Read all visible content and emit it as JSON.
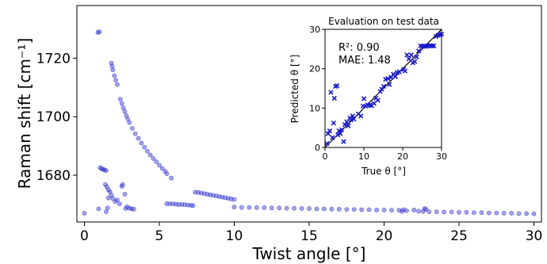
{
  "chart_data": [
    {
      "type": "scatter",
      "title": "",
      "xlabel": "Twist angle [°]",
      "ylabel": "Raman shift [cm⁻¹]",
      "xlim": [
        -0.5,
        30.5
      ],
      "ylim": [
        1664,
        1738
      ],
      "xticks": [
        0,
        5,
        10,
        15,
        20,
        25,
        30
      ],
      "xtick_labels": [
        "0",
        "5",
        "10",
        "15",
        "20",
        "25",
        "30"
      ],
      "yticks": [
        1680,
        1700,
        1720
      ],
      "ytick_labels": [
        "1680",
        "1700",
        "1720"
      ],
      "grid": false,
      "marker_color": "#3333cc",
      "series": [
        {
          "name": "",
          "points": [
            [
              0.0,
              1667.0
            ],
            [
              0.9,
              1728.8
            ],
            [
              1.0,
              1729.0
            ],
            [
              0.95,
              1668.5
            ],
            [
              1.05,
              1682.6
            ],
            [
              1.15,
              1682.2
            ],
            [
              1.25,
              1682.0
            ],
            [
              1.35,
              1681.8
            ],
            [
              1.45,
              1681.6
            ],
            [
              1.4,
              1676.8
            ],
            [
              1.5,
              1676.0
            ],
            [
              1.6,
              1675.0
            ],
            [
              1.7,
              1674.3
            ],
            [
              1.8,
              1673.2
            ],
            [
              1.9,
              1672.0
            ],
            [
              1.45,
              1667.5
            ],
            [
              1.55,
              1668.8
            ],
            [
              1.6,
              1672.2
            ],
            [
              1.8,
              1718.3
            ],
            [
              1.85,
              1717.2
            ],
            [
              1.9,
              1716.0
            ],
            [
              2.0,
              1714.0
            ],
            [
              2.1,
              1712.5
            ],
            [
              2.2,
              1711.0
            ],
            [
              2.05,
              1671.0
            ],
            [
              2.2,
              1671.5
            ],
            [
              2.35,
              1670.2
            ],
            [
              2.5,
              1676.2
            ],
            [
              2.55,
              1676.8
            ],
            [
              2.7,
              1673.5
            ],
            [
              2.75,
              1668.6
            ],
            [
              2.85,
              1669.2
            ],
            [
              3.0,
              1668.7
            ],
            [
              3.15,
              1668.5
            ],
            [
              3.3,
              1668.4
            ],
            [
              2.4,
              1706.0
            ],
            [
              2.5,
              1704.5
            ],
            [
              2.6,
              1703.0
            ],
            [
              2.7,
              1701.7
            ],
            [
              2.8,
              1700.3
            ],
            [
              2.9,
              1699.2
            ],
            [
              3.0,
              1698.0
            ],
            [
              3.2,
              1696.0
            ],
            [
              3.4,
              1694.2
            ],
            [
              3.6,
              1692.6
            ],
            [
              3.8,
              1691.0
            ],
            [
              4.0,
              1689.6
            ],
            [
              4.2,
              1688.2
            ],
            [
              4.4,
              1686.9
            ],
            [
              4.6,
              1685.7
            ],
            [
              4.8,
              1684.6
            ],
            [
              5.0,
              1683.4
            ],
            [
              5.2,
              1682.3
            ],
            [
              5.4,
              1681.3
            ],
            [
              5.5,
              1680.5
            ],
            [
              5.8,
              1679.0
            ],
            [
              5.5,
              1670.3
            ],
            [
              5.7,
              1670.2
            ],
            [
              5.9,
              1670.2
            ],
            [
              6.1,
              1670.1
            ],
            [
              6.3,
              1670.0
            ],
            [
              6.5,
              1670.0
            ],
            [
              6.7,
              1669.9
            ],
            [
              6.9,
              1669.8
            ],
            [
              7.1,
              1669.7
            ],
            [
              7.25,
              1669.6
            ],
            [
              7.4,
              1674.2
            ],
            [
              7.6,
              1674.1
            ],
            [
              7.8,
              1673.9
            ],
            [
              8.0,
              1673.7
            ],
            [
              8.2,
              1673.5
            ],
            [
              8.4,
              1673.3
            ],
            [
              8.6,
              1673.1
            ],
            [
              8.8,
              1672.9
            ],
            [
              9.0,
              1672.7
            ],
            [
              9.2,
              1672.5
            ],
            [
              9.4,
              1672.3
            ],
            [
              9.6,
              1672.1
            ],
            [
              9.8,
              1671.9
            ],
            [
              10.0,
              1671.7
            ],
            [
              10.0,
              1669.1
            ],
            [
              10.5,
              1669.0
            ],
            [
              11.0,
              1669.0
            ],
            [
              11.5,
              1668.9
            ],
            [
              12.0,
              1668.9
            ],
            [
              12.5,
              1668.8
            ],
            [
              13.0,
              1668.8
            ],
            [
              13.5,
              1668.7
            ],
            [
              14.0,
              1668.7
            ],
            [
              14.5,
              1668.6
            ],
            [
              15.0,
              1668.6
            ],
            [
              15.5,
              1668.5
            ],
            [
              16.0,
              1668.5
            ],
            [
              16.5,
              1668.4
            ],
            [
              17.0,
              1668.4
            ],
            [
              17.5,
              1668.3
            ],
            [
              18.0,
              1668.3
            ],
            [
              18.5,
              1668.2
            ],
            [
              19.0,
              1668.2
            ],
            [
              19.5,
              1668.1
            ],
            [
              20.0,
              1668.1
            ],
            [
              20.5,
              1668.0
            ],
            [
              21.0,
              1668.0
            ],
            [
              21.2,
              1667.6
            ],
            [
              21.3,
              1668.2
            ],
            [
              21.5,
              1667.9
            ],
            [
              22.0,
              1668.1
            ],
            [
              22.3,
              1667.7
            ],
            [
              22.6,
              1667.6
            ],
            [
              22.7,
              1668.6
            ],
            [
              22.8,
              1668.3
            ],
            [
              23.0,
              1667.5
            ],
            [
              23.5,
              1667.5
            ],
            [
              24.0,
              1667.4
            ],
            [
              24.5,
              1667.4
            ],
            [
              25.0,
              1667.3
            ],
            [
              25.5,
              1667.3
            ],
            [
              26.0,
              1667.2
            ],
            [
              26.5,
              1667.2
            ],
            [
              27.0,
              1667.1
            ],
            [
              27.5,
              1667.1
            ],
            [
              28.0,
              1667.0
            ],
            [
              28.5,
              1667.0
            ],
            [
              29.0,
              1666.9
            ],
            [
              29.5,
              1666.9
            ],
            [
              30.0,
              1666.8
            ]
          ]
        }
      ]
    },
    {
      "type": "scatter",
      "title": "Evaluation on test data",
      "xlabel": "True θ [°]",
      "ylabel": "Predicted θ [°]",
      "xlim": [
        0,
        30
      ],
      "ylim": [
        0,
        30
      ],
      "xticks": [
        0,
        10,
        20,
        30
      ],
      "xtick_labels": [
        "0",
        "10",
        "20",
        "30"
      ],
      "yticks": [
        0,
        10,
        20,
        30
      ],
      "ytick_labels": [
        "0",
        "10",
        "20",
        "30"
      ],
      "grid": false,
      "marker": "x",
      "marker_color": "#1a1acc",
      "annotations": [
        "R²: 0.90",
        "MAE: 1.48"
      ],
      "reference_line": [
        [
          0,
          0
        ],
        [
          30,
          30
        ]
      ],
      "series": [
        {
          "name": "",
          "points": [
            [
              0.5,
              1.0
            ],
            [
              0.8,
              3.5
            ],
            [
              1.2,
              4.2
            ],
            [
              1.5,
              14.0
            ],
            [
              1.9,
              2.5
            ],
            [
              2.2,
              6.2
            ],
            [
              2.4,
              12.5
            ],
            [
              2.7,
              15.5
            ],
            [
              3.1,
              15.7
            ],
            [
              3.3,
              3.2
            ],
            [
              3.6,
              4.2
            ],
            [
              3.9,
              3.5
            ],
            [
              4.3,
              4.5
            ],
            [
              4.8,
              1.5
            ],
            [
              5.1,
              5.8
            ],
            [
              5.6,
              6.5
            ],
            [
              6.0,
              5.5
            ],
            [
              6.4,
              7.5
            ],
            [
              6.7,
              7.0
            ],
            [
              7.1,
              8.0
            ],
            [
              7.4,
              7.2
            ],
            [
              8.6,
              8.5
            ],
            [
              9.2,
              8.0
            ],
            [
              9.8,
              10.5
            ],
            [
              10.0,
              12.4
            ],
            [
              10.5,
              10.5
            ],
            [
              11.0,
              10.8
            ],
            [
              11.6,
              10.8
            ],
            [
              12.0,
              10.6
            ],
            [
              12.6,
              11.2
            ],
            [
              13.1,
              12.5
            ],
            [
              13.6,
              12.0
            ],
            [
              14.2,
              14.2
            ],
            [
              14.6,
              14.8
            ],
            [
              15.1,
              15.5
            ],
            [
              15.6,
              17.3
            ],
            [
              16.2,
              17.5
            ],
            [
              16.6,
              16.0
            ],
            [
              17.0,
              17.8
            ],
            [
              17.6,
              18.6
            ],
            [
              18.1,
              18.0
            ],
            [
              18.6,
              19.0
            ],
            [
              19.1,
              19.2
            ],
            [
              20.2,
              19.8
            ],
            [
              20.6,
              19.4
            ],
            [
              21.1,
              23.5
            ],
            [
              21.6,
              22.5
            ],
            [
              22.2,
              23.5
            ],
            [
              22.6,
              21.5
            ],
            [
              23.1,
              21.8
            ],
            [
              23.6,
              23.0
            ],
            [
              24.1,
              24.5
            ],
            [
              24.6,
              25.8
            ],
            [
              25.1,
              25.7
            ],
            [
              25.6,
              25.8
            ],
            [
              26.1,
              25.7
            ],
            [
              26.6,
              25.8
            ],
            [
              27.1,
              25.9
            ],
            [
              27.6,
              25.8
            ],
            [
              28.0,
              25.8
            ],
            [
              28.6,
              28.2
            ],
            [
              29.1,
              28.5
            ],
            [
              29.6,
              28.6
            ],
            [
              30.0,
              28.8
            ]
          ]
        }
      ]
    }
  ]
}
